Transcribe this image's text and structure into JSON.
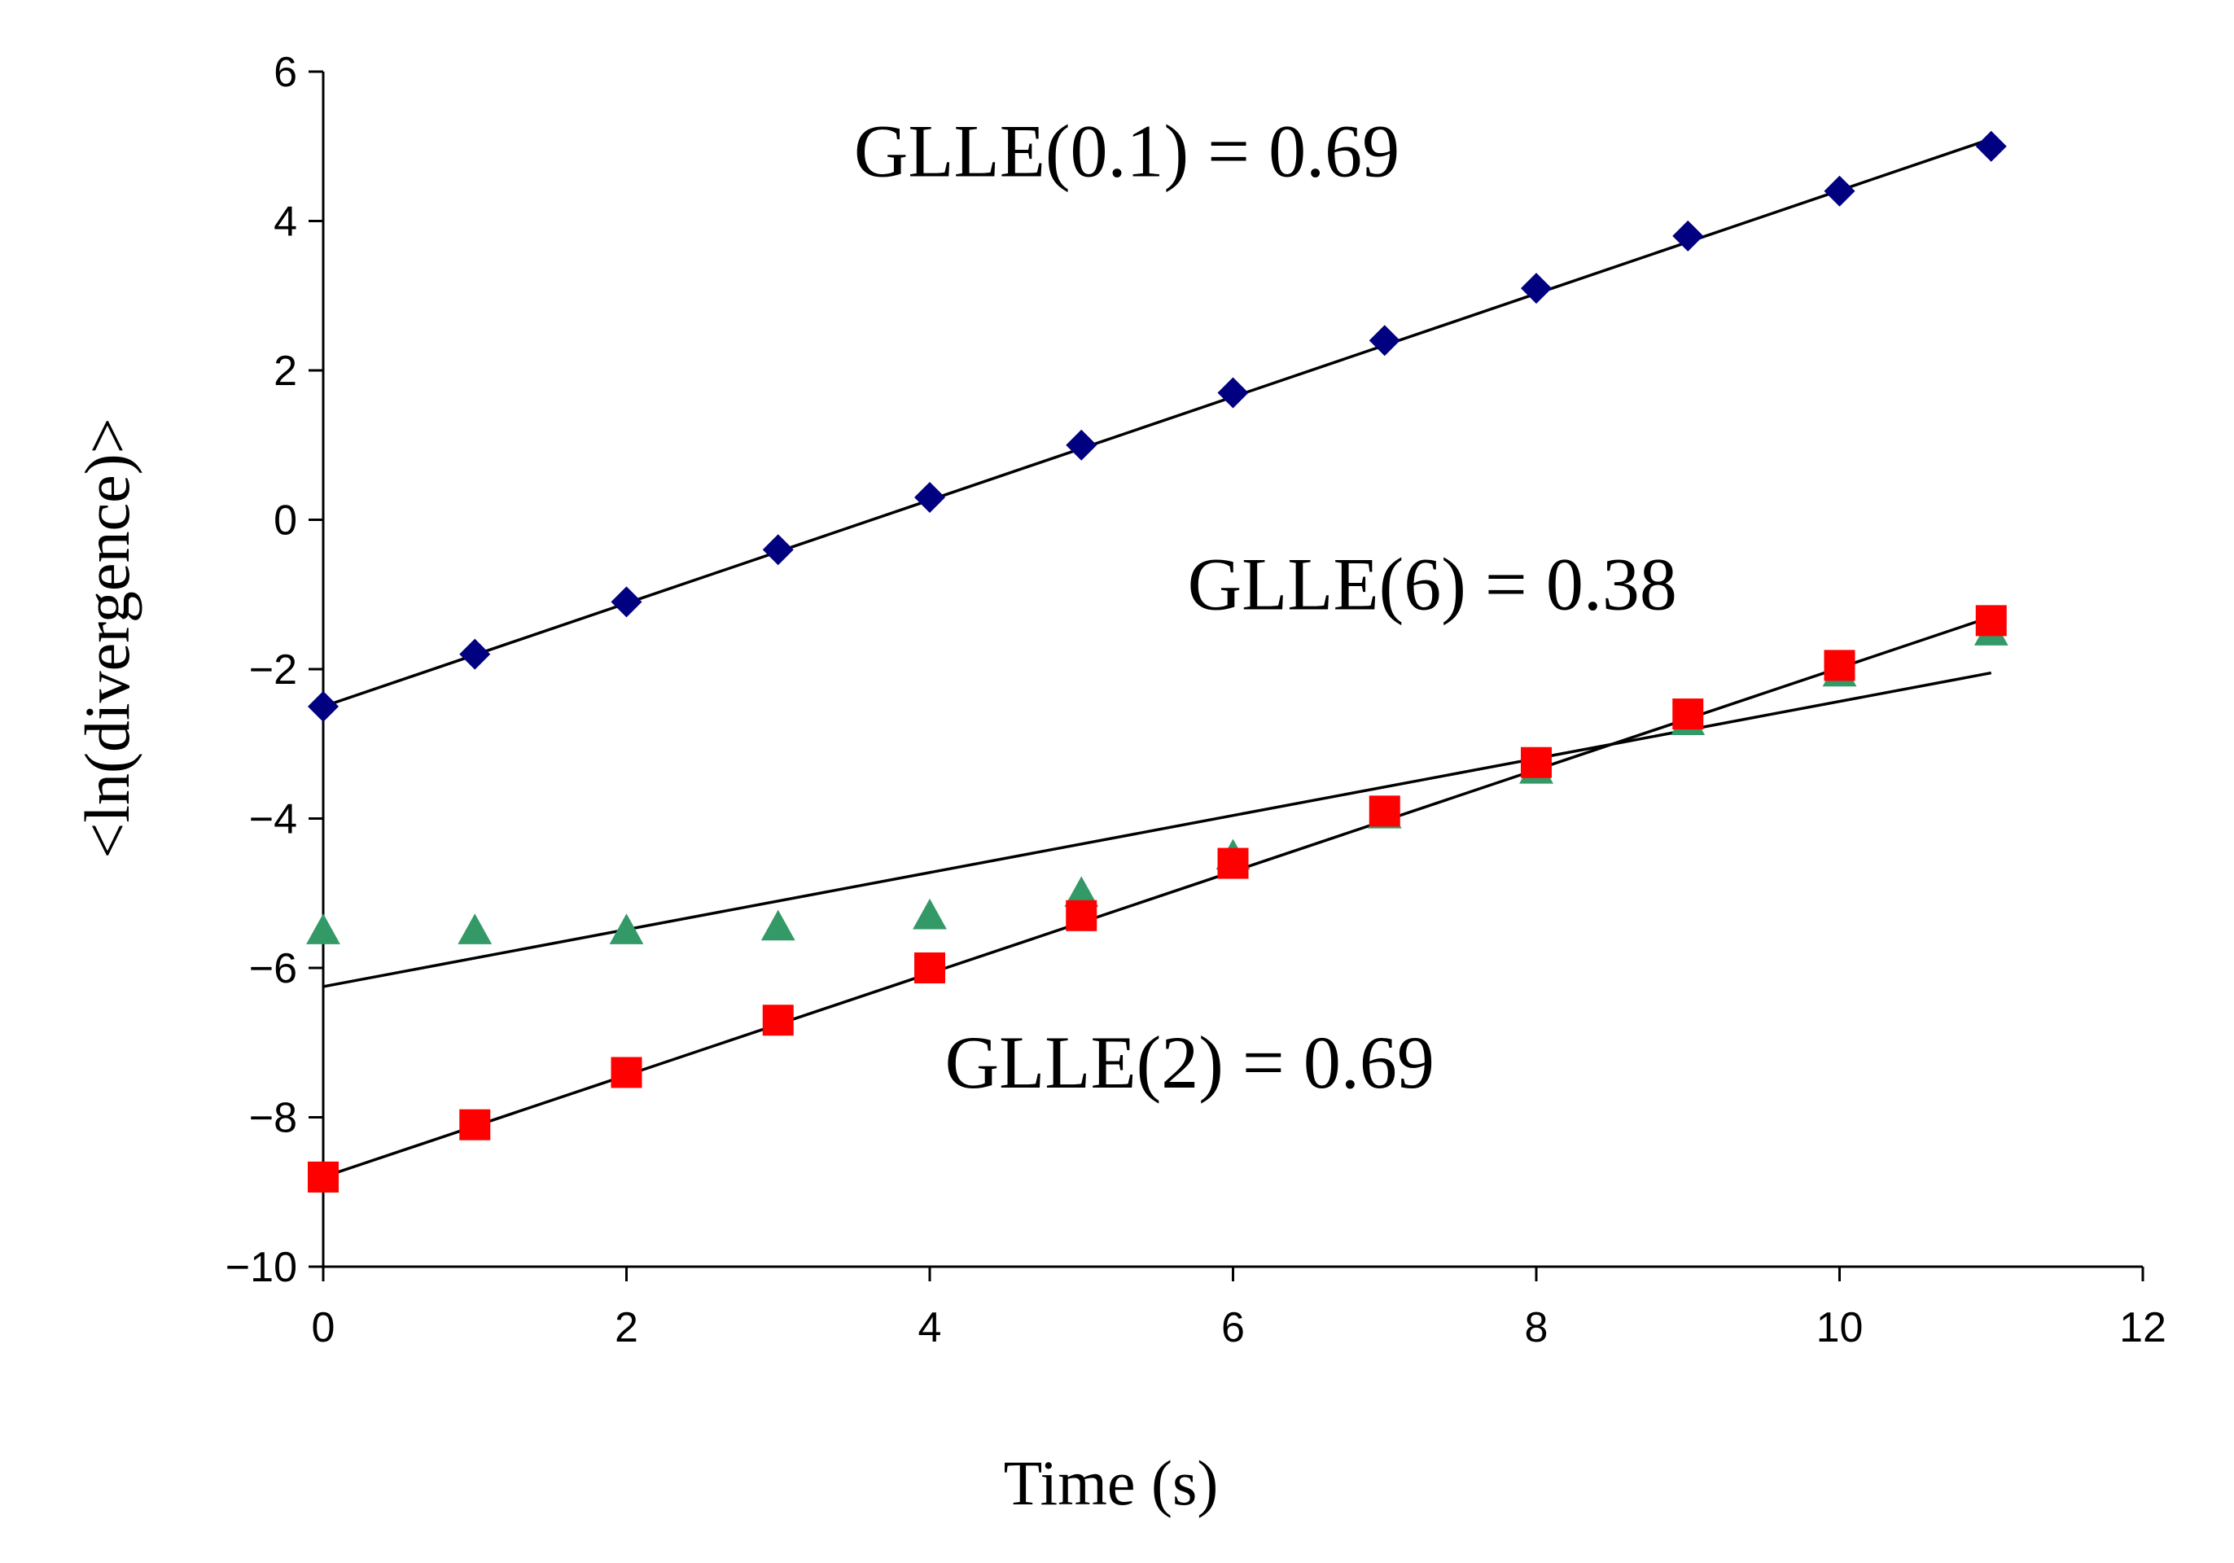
{
  "chart_data": {
    "type": "scatter",
    "title": "",
    "xlabel": "Time (s)",
    "ylabel": "<ln(divergence)>",
    "xlim": [
      0,
      12
    ],
    "ylim": [
      -10,
      6
    ],
    "xticks": [
      0,
      2,
      4,
      6,
      8,
      10,
      12
    ],
    "yticks": [
      -10,
      -8,
      -6,
      -4,
      -2,
      0,
      2,
      4,
      6
    ],
    "xtick_labels": [
      "0",
      "2",
      "4",
      "6",
      "8",
      "10",
      "12"
    ],
    "ytick_labels": [
      "−10",
      "−8",
      "−6",
      "−4",
      "−2",
      "0",
      "2",
      "4",
      "6"
    ],
    "grid": false,
    "legend": "none",
    "series": [
      {
        "name": "GLLE(0.1)",
        "marker": "diamond",
        "color": "#000080",
        "x": [
          0,
          1,
          2,
          3,
          4,
          5,
          6,
          7,
          8,
          9,
          10,
          11
        ],
        "y": [
          -2.5,
          -1.8,
          -1.1,
          -0.4,
          0.3,
          1.0,
          1.7,
          2.4,
          3.1,
          3.8,
          4.4,
          5.0
        ],
        "fit": {
          "x": [
            0,
            11
          ],
          "y": [
            -2.5,
            5.1
          ]
        }
      },
      {
        "name": "GLLE(6)",
        "marker": "triangle",
        "color": "#339966",
        "x": [
          0,
          1,
          2,
          3,
          4,
          5,
          6,
          7,
          8,
          9,
          10,
          11
        ],
        "y": [
          -5.5,
          -5.5,
          -5.5,
          -5.45,
          -5.3,
          -5.0,
          -4.5,
          -3.95,
          -3.35,
          -2.7,
          -2.05,
          -1.5
        ],
        "fit": {
          "x": [
            0,
            11
          ],
          "y": [
            -6.25,
            -2.05
          ]
        }
      },
      {
        "name": "GLLE(2)",
        "marker": "square",
        "color": "#ff0000",
        "x": [
          0,
          1,
          2,
          3,
          4,
          5,
          6,
          7,
          8,
          9,
          10,
          11
        ],
        "y": [
          -8.8,
          -8.1,
          -7.4,
          -6.7,
          -6.0,
          -5.3,
          -4.6,
          -3.9,
          -3.25,
          -2.6,
          -1.95,
          -1.35
        ],
        "fit": {
          "x": [
            0,
            11
          ],
          "y": [
            -8.8,
            -1.3
          ]
        }
      }
    ],
    "annotations": [
      {
        "text": "GLLE(0.1) = 0.69",
        "x": 3.5,
        "y": 4.6
      },
      {
        "text": "GLLE(6) = 0.38",
        "x": 5.7,
        "y": -1.2
      },
      {
        "text": "GLLE(2) = 0.69",
        "x": 4.1,
        "y": -7.6
      }
    ]
  }
}
